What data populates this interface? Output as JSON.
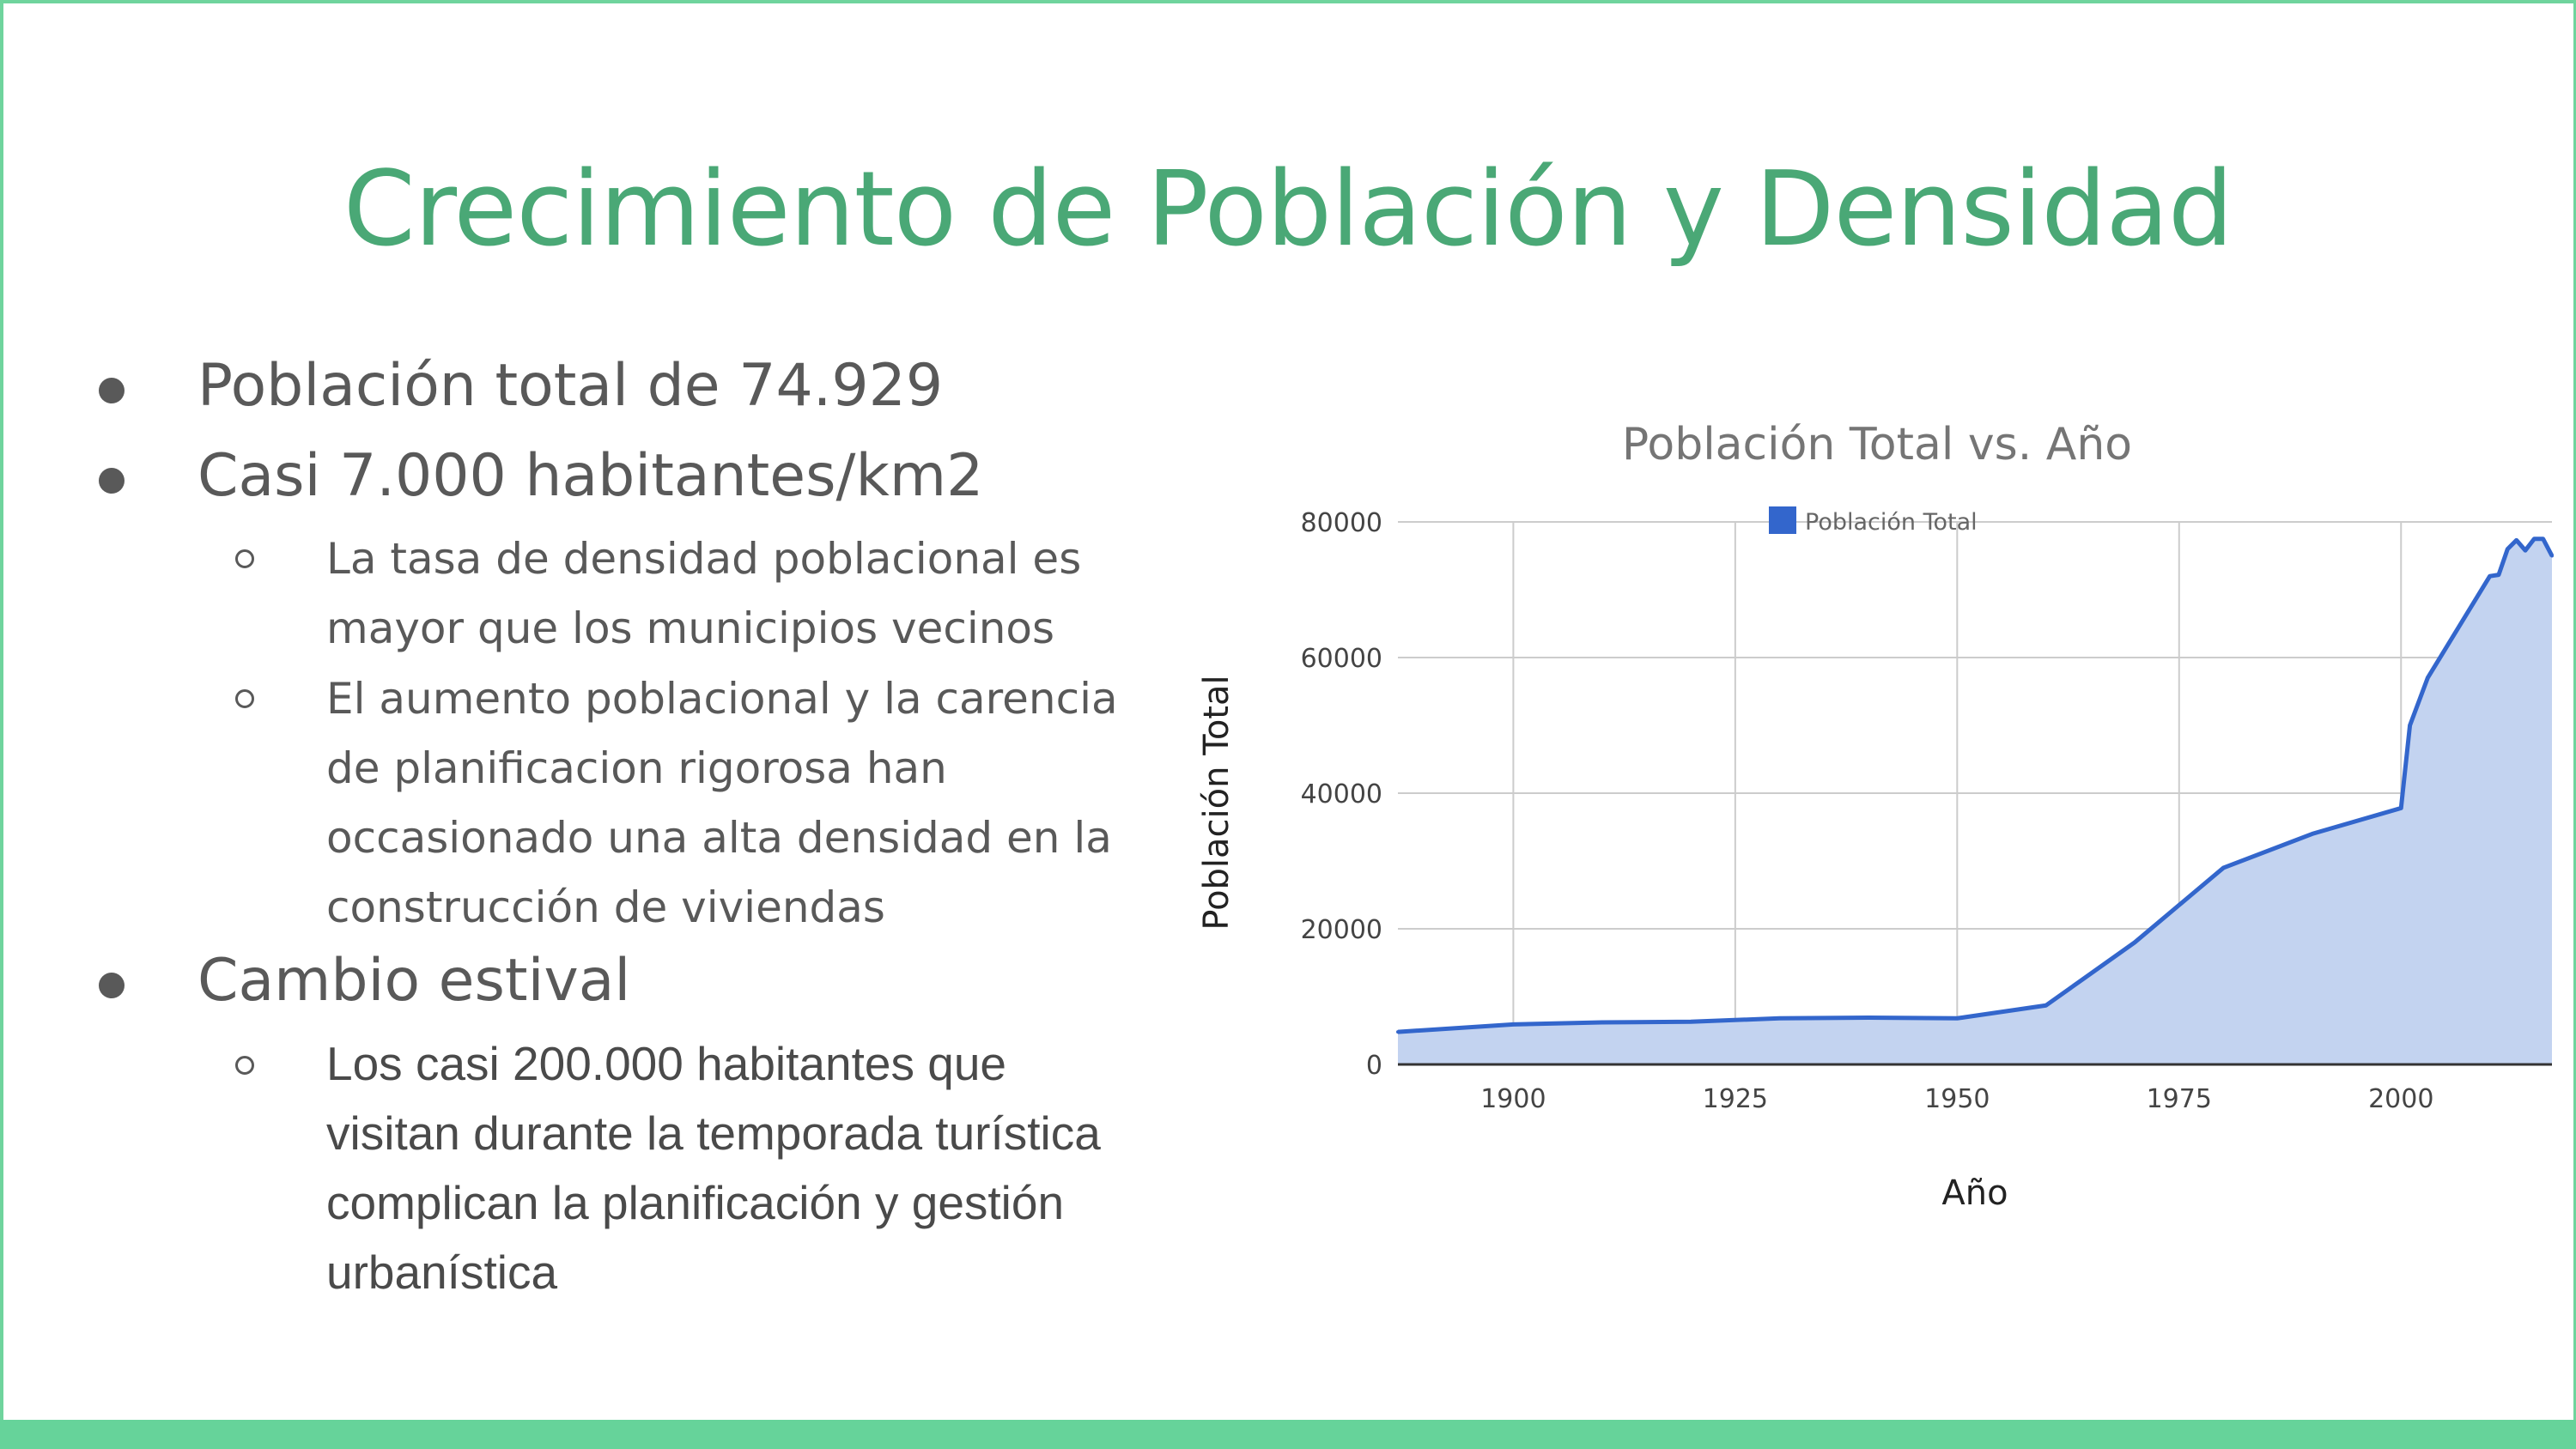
{
  "slide": {
    "title": "Crecimiento de Población y Densidad",
    "bullets": [
      {
        "text": "Población total de 74.929"
      },
      {
        "text": "Casi 7.000 habitantes/km2",
        "children": [
          {
            "text": "La tasa de densidad poblacional es mayor que los municipios vecinos"
          },
          {
            "text": "El aumento poblacional y la carencia de planificacion rigorosa han occasionado una alta densidad en la construcción de viviendas"
          }
        ]
      },
      {
        "text": "Cambio estival",
        "children": [
          {
            "text": "Los casi 200.000 habitantes que visitan durante la temporada turística complican la planificación y gestión urbanística"
          }
        ]
      }
    ]
  },
  "chart_data": {
    "type": "area",
    "title": "Población Total vs. Año",
    "xlabel": "Año",
    "ylabel": "Población Total",
    "legend": {
      "position": "top",
      "entries": [
        "Población Total"
      ]
    },
    "grid": true,
    "xlim": [
      1887,
      2017
    ],
    "ylim": [
      0,
      80000
    ],
    "xticks": [
      "1900",
      "1925",
      "1950",
      "1975",
      "2000"
    ],
    "yticks": [
      "0",
      "20000",
      "40000",
      "60000",
      "80000"
    ],
    "series": [
      {
        "name": "Población Total",
        "color": "#3366cc",
        "fill": "#c3d3f0",
        "points": [
          [
            1887,
            4800
          ],
          [
            1900,
            5900
          ],
          [
            1910,
            6200
          ],
          [
            1920,
            6300
          ],
          [
            1930,
            6800
          ],
          [
            1940,
            6900
          ],
          [
            1950,
            6800
          ],
          [
            1960,
            8700
          ],
          [
            1970,
            18000
          ],
          [
            1980,
            29000
          ],
          [
            1990,
            34000
          ],
          [
            2000,
            37800
          ],
          [
            2001,
            50000
          ],
          [
            2003,
            57000
          ],
          [
            2010,
            72000
          ],
          [
            2011,
            72200
          ],
          [
            2012,
            76000
          ],
          [
            2013,
            77300
          ],
          [
            2014,
            75800
          ],
          [
            2015,
            77500
          ],
          [
            2016,
            77500
          ],
          [
            2017,
            75000
          ]
        ]
      }
    ]
  }
}
